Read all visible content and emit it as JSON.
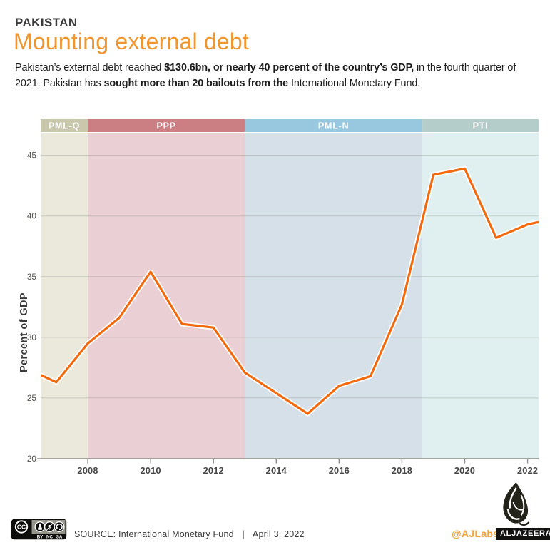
{
  "header": {
    "kicker": "PAKISTAN",
    "title": "Mounting external debt",
    "intro_segments": [
      {
        "text": "Pakistan’s external debt reached ",
        "bold": false
      },
      {
        "text": "$130.6bn, or nearly 40 percent of the country’s GDP,",
        "bold": true
      },
      {
        "text": " in the fourth quarter of 2021. Pakistan has ",
        "bold": false
      },
      {
        "text": "sought more than 20 bailouts from the",
        "bold": true
      },
      {
        "text": " International Monetary Fund.",
        "bold": false
      }
    ],
    "accent_color": "#F0962F"
  },
  "chart_data": {
    "type": "line",
    "title": "",
    "xlabel": "",
    "ylabel": "Percent of GDP",
    "x": [
      2006.5,
      2007,
      2008,
      2009,
      2010,
      2011,
      2012,
      2013,
      2014,
      2015,
      2016,
      2017,
      2018,
      2019,
      2020,
      2021,
      2022,
      2022.35
    ],
    "values": [
      26.9,
      26.3,
      29.5,
      31.6,
      35.4,
      31.1,
      30.8,
      27.1,
      25.4,
      23.7,
      26.0,
      26.8,
      32.7,
      43.4,
      43.9,
      38.2,
      39.3,
      39.5
    ],
    "xticks": [
      2008,
      2010,
      2012,
      2014,
      2016,
      2018,
      2020,
      2022
    ],
    "yticks": [
      20,
      25,
      30,
      35,
      40,
      45
    ],
    "xlim": [
      2006.5,
      2022.35
    ],
    "ylim": [
      20,
      46.8
    ],
    "grid": true,
    "legend_position": "none",
    "line_color": "#F2690E",
    "line_casing_color": "#FFFFFF",
    "bands": [
      {
        "label": "PML-Q",
        "from": 2006.5,
        "to": 2008,
        "header_color": "#C9C7AC",
        "fill_color": "#EBE9DC"
      },
      {
        "label": "PPP",
        "from": 2008,
        "to": 2013,
        "header_color": "#CB7F82",
        "fill_color": "#EACFD4"
      },
      {
        "label": "PML-N",
        "from": 2013,
        "to": 2018.65,
        "header_color": "#97C8DF",
        "fill_color": "#D5E0E9"
      },
      {
        "label": "PTI",
        "from": 2018.65,
        "to": 2022.35,
        "header_color": "#B5CDCA",
        "fill_color": "#E0F0F1"
      }
    ]
  },
  "footer": {
    "license": {
      "cc": "CC",
      "by": "BY",
      "nc": "NC",
      "sa": "SA"
    },
    "source_label": "SOURCE: International Monetary Fund",
    "separator": "|",
    "date": "April 3, 2022",
    "credit": "@AJLabs",
    "brand": "ALJAZEERA"
  }
}
